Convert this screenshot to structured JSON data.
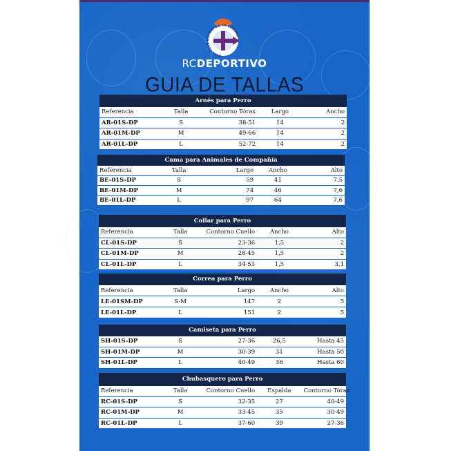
{
  "brand": {
    "prefix": "RC",
    "name": "DEPORTIVO",
    "crest_text": "REAL CLUB DEPORTIVO LA CORUÑA"
  },
  "title": "GUIA DE TALLAS",
  "colors": {
    "background": "#1866c8",
    "table_header": "#14254a",
    "title": "#0d1a33"
  },
  "tables": [
    {
      "title": "Arnés para Perro",
      "columns": [
        "Referencia",
        "Talla",
        "Contorno Tórax",
        "Largo",
        "Ancho"
      ],
      "rows": [
        [
          "AR-01S-DP",
          "S",
          "38-51",
          "14",
          "2"
        ],
        [
          "AR-01M-DP",
          "M",
          "49-66",
          "14",
          "2"
        ],
        [
          "AR-01L-DP",
          "L",
          "52-72",
          "14",
          "2"
        ]
      ]
    },
    {
      "title": "Cama para Animales de Compañía",
      "columns": [
        "Referencia",
        "Talla",
        "Largo",
        "Ancho",
        "Alto"
      ],
      "rows": [
        [
          "BE-01S-DP",
          "S",
          "59",
          "41",
          "7,5"
        ],
        [
          "BE-01M-DP",
          "M",
          "74",
          "46",
          "7,6"
        ],
        [
          "BE-01L-DP",
          "L",
          "97",
          "64",
          "7,6"
        ]
      ]
    },
    {
      "title": "Collar para Perro",
      "columns": [
        "Referencia",
        "Talla",
        "Contorno Cuello",
        "Ancho",
        "Alto"
      ],
      "rows": [
        [
          "CL-01S-DP",
          "S",
          "23-36",
          "1,5",
          "2"
        ],
        [
          "CL-01M-DP",
          "M",
          "28-45",
          "1,5",
          "2"
        ],
        [
          "CL-01L-DP",
          "L",
          "34-53",
          "1,5",
          "3,1"
        ]
      ]
    },
    {
      "title": "Correa para Perro",
      "columns": [
        "Referencia",
        "Talla",
        "Largo",
        "Ancho",
        "Alto"
      ],
      "rows": [
        [
          "LE-01SM-DP",
          "S-M",
          "147",
          "2",
          "5"
        ],
        [
          "LE-01L-DP",
          "L",
          "151",
          "2",
          "5"
        ]
      ]
    },
    {
      "title": "Camiseta para Perro",
      "columns": [],
      "rows": [
        [
          "SH-01S-DP",
          "S",
          "27-36",
          "26,5",
          "Hasta 45"
        ],
        [
          "SH-01M-DP",
          "M",
          "30-39",
          "31",
          "Hasta 50"
        ],
        [
          "SH-01L-DP",
          "L",
          "40-49",
          "36",
          "Hasta 60"
        ]
      ]
    },
    {
      "title": "Chubasquero para Perro",
      "columns": [
        "Referencia",
        "Talla",
        "Contorno Cuello",
        "Espalda",
        "Contorno Tórax"
      ],
      "rows": [
        [
          "RC-01S-DP",
          "S",
          "32-35",
          "27",
          "40-49"
        ],
        [
          "RC-01M-DP",
          "M",
          "33-45",
          "35",
          "30-49"
        ],
        [
          "RC-01L-DP",
          "L",
          "37-60",
          "39",
          "27-36"
        ]
      ]
    }
  ]
}
